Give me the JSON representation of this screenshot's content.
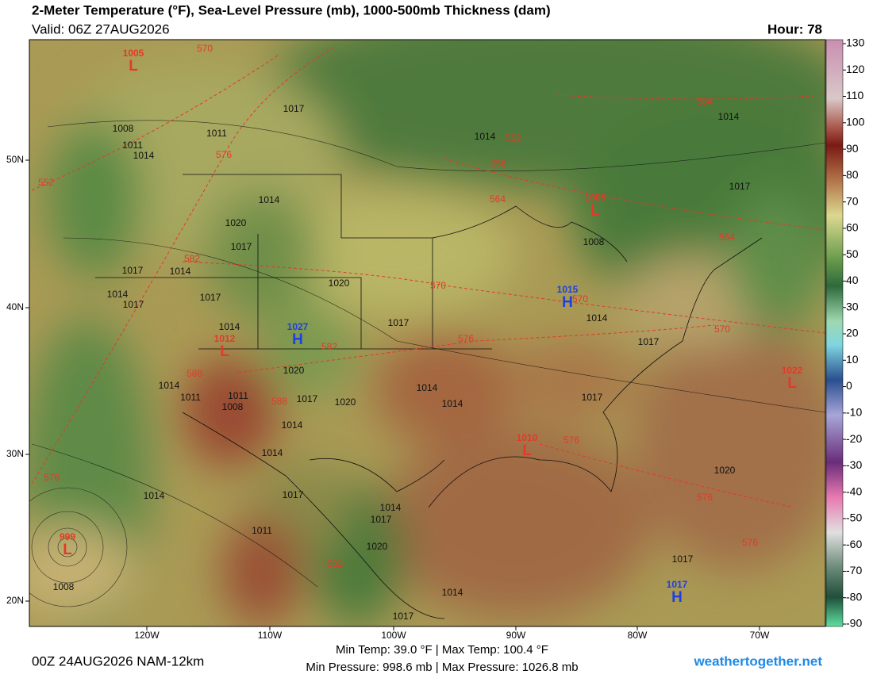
{
  "header": {
    "title": "2-Meter Temperature (°F), Sea-Level Pressure (mb), 1000-500mb Thickness (dam)",
    "valid": "Valid: 06Z 27AUG2026",
    "hour": "Hour: 78"
  },
  "colorbar": {
    "ticks": [
      130,
      120,
      110,
      100,
      90,
      80,
      70,
      60,
      50,
      40,
      30,
      20,
      10,
      0,
      -10,
      -20,
      -30,
      -40,
      -50,
      -60,
      -70,
      -80,
      -90
    ]
  },
  "latitude_labels": [
    "50N",
    "40N",
    "30N",
    "20N"
  ],
  "longitude_labels": [
    "120W",
    "110W",
    "100W",
    "90W",
    "80W",
    "70W"
  ],
  "pressure_centers": [
    {
      "letter": "L",
      "value": 1005
    },
    {
      "letter": "L",
      "value": 1012
    },
    {
      "letter": "H",
      "value": 1027
    },
    {
      "letter": "H",
      "value": 1015
    },
    {
      "letter": "L",
      "value": 1005
    },
    {
      "letter": "L",
      "value": 1010
    },
    {
      "letter": "L",
      "value": 1022
    },
    {
      "letter": "L",
      "value": 999
    },
    {
      "letter": "H",
      "value": 1017
    }
  ],
  "isobar_labels": [
    1017,
    1008,
    1011,
    1014,
    1011,
    1014,
    1020,
    1017,
    1017,
    1014,
    1014,
    1017,
    1017,
    1014,
    1020,
    1017,
    1014,
    1017,
    1014,
    1014,
    1017,
    1020,
    1017,
    1020,
    1014,
    1011,
    1011,
    1008,
    1014,
    1014,
    1017,
    1014,
    1011,
    1014,
    1017,
    1020,
    1014,
    1017,
    1008,
    1014,
    1017,
    1020,
    1017,
    1008,
    1014
  ],
  "thickness_labels": [
    570,
    576,
    552,
    582,
    552,
    558,
    564,
    564,
    564,
    570,
    570,
    576,
    582,
    570,
    588,
    588,
    576,
    582,
    576,
    576,
    576
  ],
  "footer": {
    "run": "00Z 24AUG2026 NAM-12km",
    "temps": "Min Temp:  39.0 °F | Max Temp: 100.4 °F",
    "pressures": "Min Pressure: 998.6 mb | Max Pressure: 1026.8 mb",
    "site": "weathertogether.net"
  }
}
